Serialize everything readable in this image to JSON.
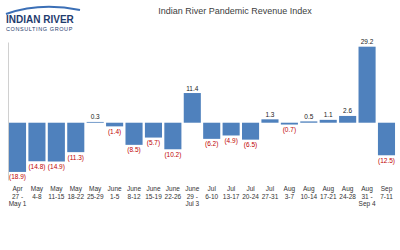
{
  "logo": {
    "name": "INDIAN RIVER",
    "tagline": "CONSULTING GROUP"
  },
  "chart_data": {
    "type": "bar",
    "title": "Indian River Pandemic Revenue Index",
    "categories": [
      "Apr\n27 -\nMay 1",
      "May\n4-8",
      "May\n11-15",
      "May\n18-22",
      "May\n25-29",
      "June\n1-5",
      "June\n8-12",
      "June\n15-19",
      "June\n22-26",
      "June\n29 -\nJul 3",
      "Jul\n6-10",
      "Jul\n13-17",
      "Jul\n20-24",
      "Jul\n27-31",
      "Aug\n3-7",
      "Aug\n10-14",
      "Aug\n17-21",
      "Aug\n24-28",
      "Aug\n31 -\nSep 4",
      "Sep\n7-11"
    ],
    "values": [
      -18.9,
      -14.8,
      -14.9,
      -11.3,
      0.3,
      -1.4,
      -8.5,
      -5.7,
      -10.2,
      11.4,
      -6.2,
      -4.9,
      -6.5,
      1.3,
      -0.7,
      0.5,
      1.1,
      2.6,
      29.2,
      -12.5
    ],
    "value_labels": [
      "(18.9)",
      "(14.8)",
      "(14.9)",
      "(11.3)",
      "0.3",
      "(1.4)",
      "(8.5)",
      "(5.7)",
      "(10.2)",
      "11.4",
      "(6.2)",
      "(4.9)",
      "(6.5)",
      "1.3",
      "(0.7)",
      "0.5",
      "1.1",
      "2.6",
      "29.2",
      "(12.5)"
    ],
    "color": "#4f81bd",
    "ylim": [
      -22,
      31
    ],
    "yticks": [],
    "grid": false,
    "data_labels": true,
    "tick_labels": "x"
  }
}
